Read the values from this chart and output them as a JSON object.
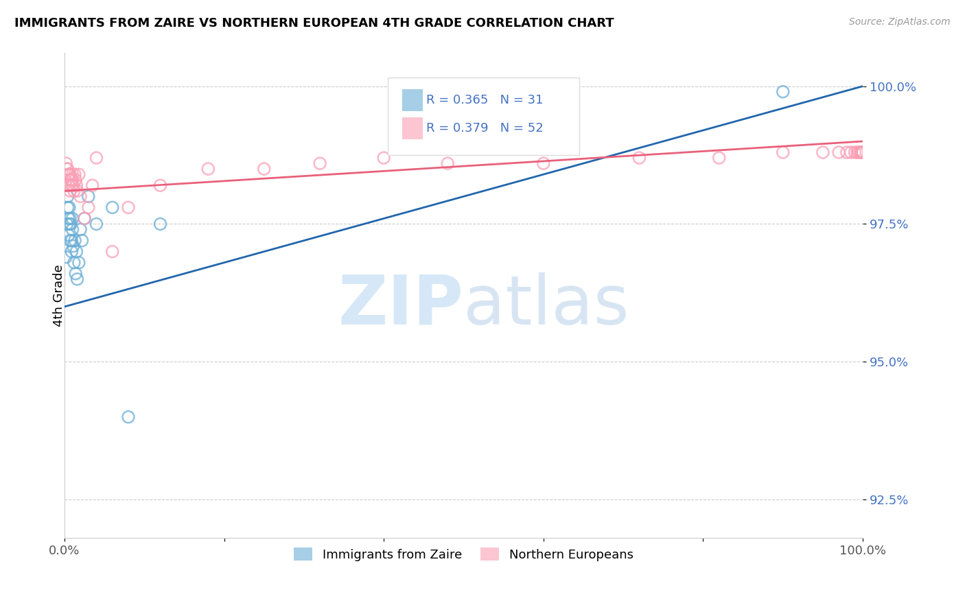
{
  "title": "IMMIGRANTS FROM ZAIRE VS NORTHERN EUROPEAN 4TH GRADE CORRELATION CHART",
  "source": "Source: ZipAtlas.com",
  "ylabel": "4th Grade",
  "ytick_labels": [
    "92.5%",
    "95.0%",
    "97.5%",
    "100.0%"
  ],
  "ytick_values": [
    0.925,
    0.95,
    0.975,
    1.0
  ],
  "xlim": [
    0.0,
    1.0
  ],
  "ylim": [
    0.918,
    1.006
  ],
  "legend1_R": "0.365",
  "legend1_N": "31",
  "legend2_R": "0.379",
  "legend2_N": "52",
  "blue_color": "#6baed6",
  "pink_color": "#fa9fb5",
  "blue_line_color": "#2166ac",
  "pink_line_color": "#e9607a",
  "blue_x": [
    0.002,
    0.003,
    0.004,
    0.004,
    0.005,
    0.005,
    0.006,
    0.006,
    0.007,
    0.007,
    0.008,
    0.009,
    0.009,
    0.01,
    0.01,
    0.011,
    0.012,
    0.013,
    0.014,
    0.015,
    0.016,
    0.018,
    0.02,
    0.022,
    0.025,
    0.03,
    0.04,
    0.06,
    0.08,
    0.12,
    0.9
  ],
  "blue_y": [
    0.969,
    0.975,
    0.98,
    0.978,
    0.976,
    0.973,
    0.978,
    0.975,
    0.976,
    0.972,
    0.975,
    0.97,
    0.972,
    0.976,
    0.974,
    0.971,
    0.968,
    0.972,
    0.966,
    0.97,
    0.965,
    0.968,
    0.974,
    0.972,
    0.976,
    0.98,
    0.975,
    0.978,
    0.94,
    0.975,
    0.999
  ],
  "pink_x": [
    0.002,
    0.003,
    0.004,
    0.005,
    0.005,
    0.006,
    0.006,
    0.007,
    0.007,
    0.008,
    0.009,
    0.01,
    0.01,
    0.011,
    0.012,
    0.013,
    0.014,
    0.015,
    0.016,
    0.018,
    0.02,
    0.025,
    0.03,
    0.035,
    0.04,
    0.06,
    0.08,
    0.12,
    0.18,
    0.25,
    0.32,
    0.4,
    0.48,
    0.6,
    0.72,
    0.82,
    0.9,
    0.95,
    0.97,
    0.98,
    0.985,
    0.99,
    0.993,
    0.995,
    0.997,
    0.998,
    0.999,
    0.999,
    0.999,
    1.0,
    1.0,
    1.0
  ],
  "pink_y": [
    0.986,
    0.985,
    0.985,
    0.984,
    0.982,
    0.984,
    0.982,
    0.981,
    0.984,
    0.983,
    0.982,
    0.984,
    0.983,
    0.982,
    0.981,
    0.984,
    0.983,
    0.982,
    0.981,
    0.984,
    0.98,
    0.976,
    0.978,
    0.982,
    0.987,
    0.97,
    0.978,
    0.982,
    0.985,
    0.985,
    0.986,
    0.987,
    0.986,
    0.986,
    0.987,
    0.987,
    0.988,
    0.988,
    0.988,
    0.988,
    0.988,
    0.988,
    0.988,
    0.988,
    0.988,
    0.988,
    0.988,
    0.988,
    0.988,
    0.988,
    0.988,
    0.988
  ],
  "blue_trend_x": [
    0.0,
    1.0
  ],
  "blue_trend_y": [
    0.96,
    1.0
  ],
  "pink_trend_x": [
    0.0,
    1.0
  ],
  "pink_trend_y": [
    0.981,
    0.99
  ]
}
